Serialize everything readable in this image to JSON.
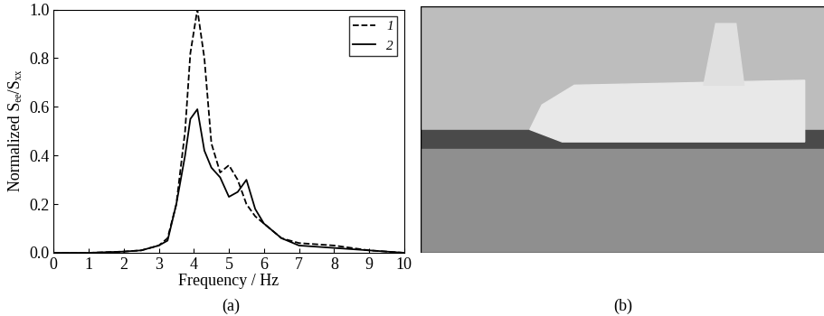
{
  "chart_data": {
    "type": "line",
    "x_label": "Frequency / Hz",
    "y_label": "Normalized Sₑₑ/Sₓₓ",
    "x": [
      0,
      1,
      2,
      2.5,
      3,
      3.25,
      3.5,
      3.75,
      3.9,
      4.1,
      4.3,
      4.5,
      4.75,
      5,
      5.25,
      5.5,
      5.75,
      6,
      6.5,
      7,
      8,
      9,
      10
    ],
    "series": [
      {
        "name": "1",
        "color": "#000000",
        "line_style": "dashed",
        "values": [
          0,
          0,
          0.005,
          0.01,
          0.03,
          0.06,
          0.2,
          0.5,
          0.82,
          1.0,
          0.8,
          0.45,
          0.33,
          0.36,
          0.3,
          0.2,
          0.15,
          0.12,
          0.06,
          0.04,
          0.03,
          0.01,
          0
        ]
      },
      {
        "name": "2",
        "color": "#000000",
        "line_style": "solid",
        "values": [
          0,
          0,
          0.005,
          0.01,
          0.03,
          0.05,
          0.2,
          0.4,
          0.55,
          0.59,
          0.42,
          0.35,
          0.31,
          0.23,
          0.25,
          0.3,
          0.18,
          0.12,
          0.06,
          0.03,
          0.02,
          0.01,
          0
        ]
      }
    ],
    "xlim": [
      0,
      10
    ],
    "xticks": [
      0,
      1,
      2,
      3,
      4,
      5,
      6,
      7,
      8,
      9,
      10
    ],
    "ylim": [
      0,
      1
    ],
    "yticks": [
      {
        "value": 0,
        "label": "0.0"
      },
      {
        "value": 0.2,
        "label": "0.2"
      },
      {
        "value": 0.4,
        "label": "0.4"
      },
      {
        "value": 0.6,
        "label": "0.6"
      },
      {
        "value": 0.8,
        "label": "0.8"
      },
      {
        "value": 1,
        "label": "1.0"
      }
    ],
    "legend": "upper right",
    "grid": false
  },
  "panel_labels": [
    "(a)",
    "(b)"
  ]
}
